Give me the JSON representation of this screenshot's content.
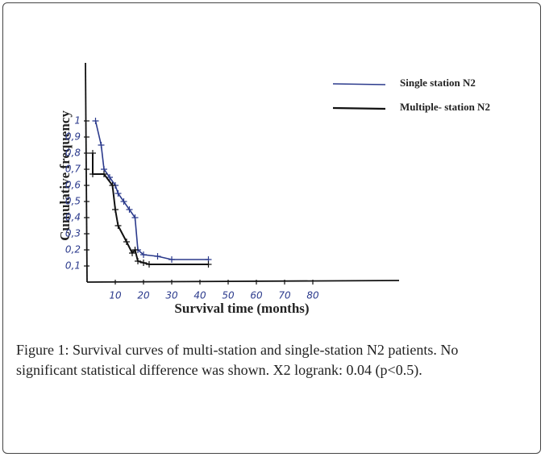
{
  "chart_data": {
    "type": "line",
    "x_label": "Survival time (months)",
    "y_label": "Cumulative frequency",
    "xlim": [
      0,
      110
    ],
    "ylim": [
      0,
      1.3
    ],
    "xticks": [
      10,
      20,
      30,
      40,
      50,
      60,
      70,
      80
    ],
    "yticks": [
      {
        "value": 0.1,
        "label": "0,1"
      },
      {
        "value": 0.2,
        "label": "0,2"
      },
      {
        "value": 0.3,
        "label": "0,3"
      },
      {
        "value": 0.4,
        "label": "0,4"
      },
      {
        "value": 0.5,
        "label": "0,5"
      },
      {
        "value": 0.6,
        "label": "0,6"
      },
      {
        "value": 0.7,
        "label": "0,7"
      },
      {
        "value": 0.8,
        "label": "0,8"
      },
      {
        "value": 0.9,
        "label": "0,9"
      },
      1
    ],
    "series": [
      {
        "name": "Single station N2",
        "color": "#2b3a8c",
        "x": [
          3,
          5,
          6,
          8,
          10,
          11,
          13,
          15,
          17,
          18,
          20,
          25,
          30,
          43
        ],
        "values": [
          1.0,
          0.85,
          0.7,
          0.65,
          0.6,
          0.55,
          0.5,
          0.45,
          0.4,
          0.2,
          0.17,
          0.16,
          0.14,
          0.14
        ]
      },
      {
        "name": "Multiple- station N2",
        "color": "#111111",
        "x": [
          2,
          2,
          6,
          9,
          10,
          11,
          14,
          16,
          17,
          18,
          20,
          22,
          43
        ],
        "values": [
          0.8,
          0.67,
          0.67,
          0.6,
          0.45,
          0.35,
          0.25,
          0.18,
          0.2,
          0.13,
          0.12,
          0.11,
          0.11
        ]
      }
    ]
  },
  "caption": "Figure 1: Survival curves of multi-station and single-station N2 patients. No significant statistical difference was shown. X2 logrank: 0.04 (p<0.5)."
}
